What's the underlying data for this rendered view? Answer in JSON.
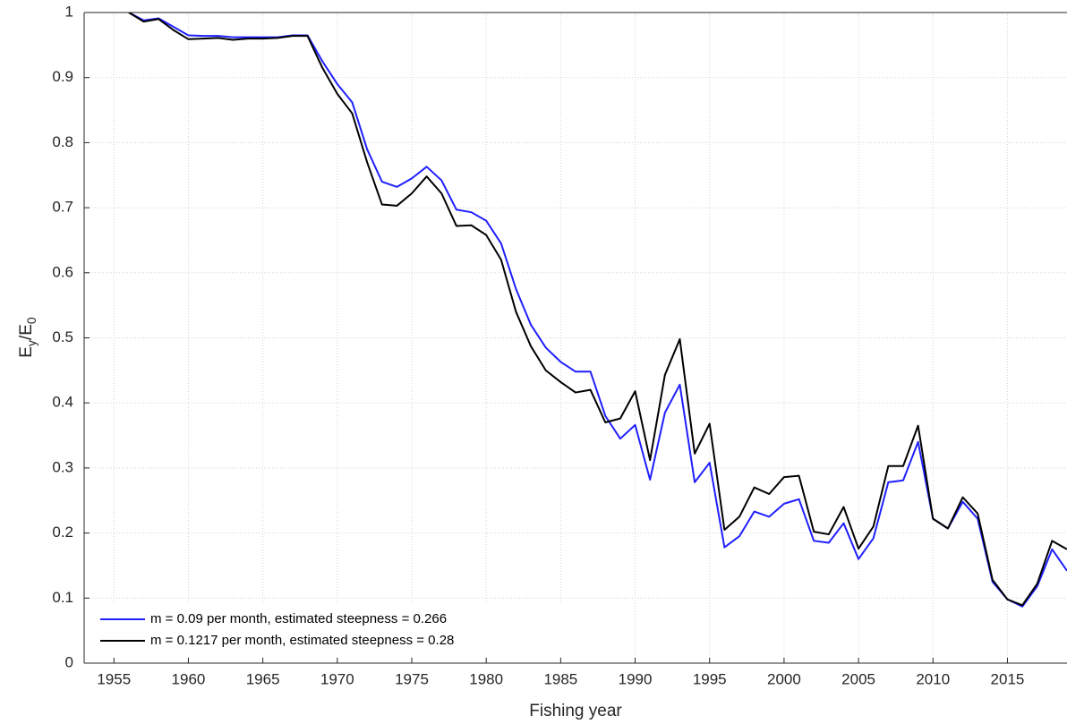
{
  "chart_data": {
    "type": "line",
    "xlabel": "Fishing year",
    "ylabel": [
      {
        "text": "E"
      },
      {
        "text": "y",
        "sub": true
      },
      {
        "text": "/E"
      },
      {
        "text": "0",
        "sub": true
      }
    ],
    "x": [
      1956,
      1957,
      1958,
      1959,
      1960,
      1961,
      1962,
      1963,
      1964,
      1965,
      1966,
      1967,
      1968,
      1969,
      1970,
      1971,
      1972,
      1973,
      1974,
      1975,
      1976,
      1977,
      1978,
      1979,
      1980,
      1981,
      1982,
      1983,
      1984,
      1985,
      1986,
      1987,
      1988,
      1989,
      1990,
      1991,
      1992,
      1993,
      1994,
      1995,
      1996,
      1997,
      1998,
      1999,
      2000,
      2001,
      2002,
      2003,
      2004,
      2005,
      2006,
      2007,
      2008,
      2009,
      2010,
      2011,
      2012,
      2013,
      2014,
      2015,
      2016,
      2017,
      2018,
      2019
    ],
    "series": [
      {
        "name": "m = 0.09 per month, estimated steepness = 0.266",
        "color": "#1f1fff",
        "values": [
          1.0,
          0.988,
          0.991,
          0.978,
          0.965,
          0.964,
          0.964,
          0.962,
          0.962,
          0.962,
          0.962,
          0.965,
          0.965,
          0.925,
          0.89,
          0.862,
          0.79,
          0.74,
          0.732,
          0.745,
          0.763,
          0.742,
          0.697,
          0.693,
          0.68,
          0.645,
          0.575,
          0.52,
          0.485,
          0.463,
          0.448,
          0.448,
          0.38,
          0.345,
          0.366,
          0.282,
          0.385,
          0.428,
          0.278,
          0.308,
          0.178,
          0.195,
          0.233,
          0.225,
          0.245,
          0.252,
          0.188,
          0.185,
          0.215,
          0.16,
          0.192,
          0.278,
          0.281,
          0.34,
          0.222,
          0.207,
          0.248,
          0.222,
          0.125,
          0.098,
          0.087,
          0.118,
          0.175,
          0.142
        ]
      },
      {
        "name": "m = 0.1217 per month, estimated steepness = 0.28",
        "color": "#000000",
        "values": [
          1.0,
          0.986,
          0.99,
          0.973,
          0.959,
          0.96,
          0.961,
          0.958,
          0.96,
          0.96,
          0.961,
          0.964,
          0.964,
          0.915,
          0.875,
          0.845,
          0.77,
          0.705,
          0.703,
          0.722,
          0.748,
          0.722,
          0.672,
          0.673,
          0.658,
          0.62,
          0.54,
          0.487,
          0.45,
          0.432,
          0.416,
          0.42,
          0.37,
          0.376,
          0.418,
          0.312,
          0.443,
          0.498,
          0.322,
          0.368,
          0.205,
          0.225,
          0.27,
          0.26,
          0.286,
          0.288,
          0.202,
          0.198,
          0.24,
          0.176,
          0.21,
          0.303,
          0.303,
          0.365,
          0.222,
          0.207,
          0.255,
          0.23,
          0.128,
          0.098,
          0.089,
          0.122,
          0.188,
          0.175
        ]
      }
    ],
    "xlim": [
      1953,
      2019
    ],
    "xticks": [
      1955,
      1960,
      1965,
      1970,
      1975,
      1980,
      1985,
      1990,
      1995,
      2000,
      2005,
      2010,
      2015
    ],
    "ylim": [
      0,
      1
    ],
    "yticks": [
      0,
      0.1,
      0.2,
      0.3,
      0.4,
      0.5,
      0.6,
      0.7,
      0.8,
      0.9,
      1
    ],
    "grid": true,
    "legend": "lower left"
  }
}
